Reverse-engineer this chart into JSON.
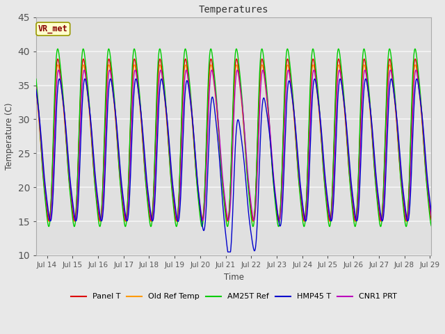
{
  "title": "Temperatures",
  "ylabel": "Temperature (C)",
  "xlabel": "Time",
  "annotation": "VR_met",
  "ylim": [
    10,
    45
  ],
  "xlim_days": [
    13.58,
    29.05
  ],
  "xtick_days": [
    14,
    15,
    16,
    17,
    18,
    19,
    20,
    21,
    22,
    23,
    24,
    25,
    26,
    27,
    28,
    29
  ],
  "xtick_labels": [
    "Jul 14",
    "Jul 15",
    "Jul 16",
    "Jul 17",
    "Jul 18",
    "Jul 19",
    "Jul 20",
    "Jul 21",
    "Jul 22",
    "Jul 23",
    "Jul 24",
    "Jul 25",
    "Jul 26",
    "Jul 27",
    "Jul 28",
    "Jul 29"
  ],
  "yticks": [
    10,
    15,
    20,
    25,
    30,
    35,
    40,
    45
  ],
  "series_colors": {
    "Panel T": "#dd0000",
    "Old Ref Temp": "#ff9900",
    "AM25T Ref": "#00cc00",
    "HMP45 T": "#0000cc",
    "CNR1 PRT": "#bb00bb"
  },
  "fig_bg": "#e8e8e8",
  "plot_bg": "#e0e0e0",
  "grid_color": "#f5f5f5",
  "annotation_bg": "#ffffcc",
  "annotation_border": "#999900",
  "annotation_text_color": "#880000",
  "linewidth": 1.0,
  "start_day": 13.5,
  "end_day": 29.2,
  "n_pts": 1500,
  "base_mean": 27.0,
  "base_amp": 14.5,
  "min_temp": 11.0,
  "max_temp": 43.0
}
